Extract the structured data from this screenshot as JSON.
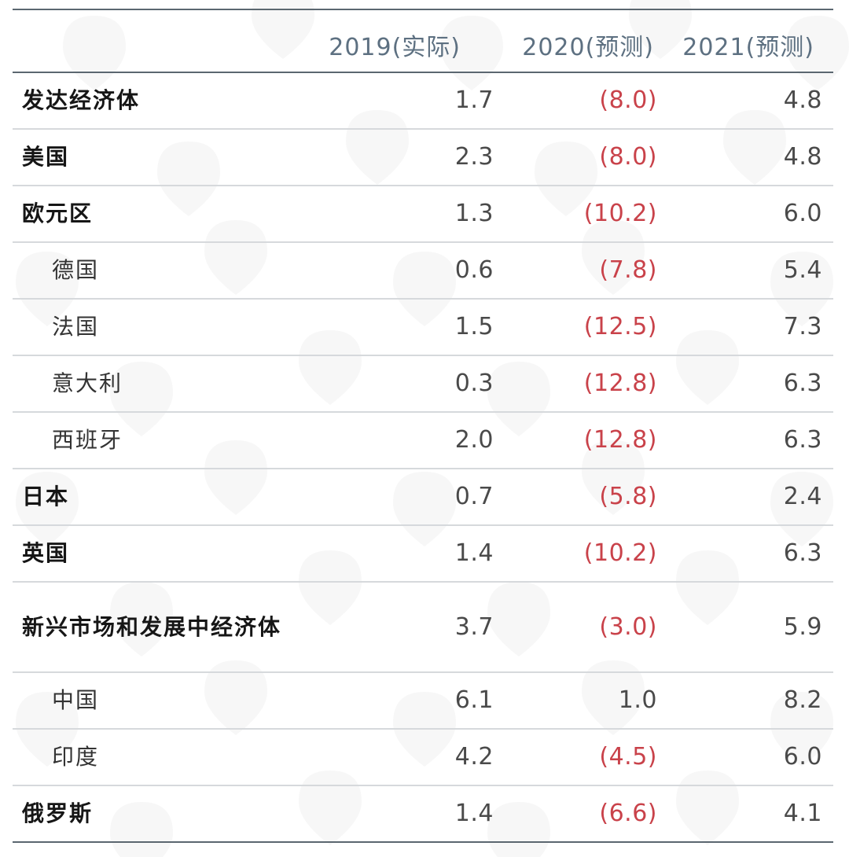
{
  "table": {
    "headers": [
      "",
      "2019(实际)",
      "2020(预测)",
      "2021(预测)"
    ],
    "rows": [
      {
        "label": "发达经济体",
        "v2019": "1.7",
        "v2020": "(8.0)",
        "v2021": "4.8",
        "level": "main",
        "neg2020": true
      },
      {
        "label": "美国",
        "v2019": "2.3",
        "v2020": "(8.0)",
        "v2021": "4.8",
        "level": "main",
        "neg2020": true
      },
      {
        "label": "欧元区",
        "v2019": "1.3",
        "v2020": "(10.2)",
        "v2021": "6.0",
        "level": "main",
        "neg2020": true
      },
      {
        "label": "德国",
        "v2019": "0.6",
        "v2020": "(7.8)",
        "v2021": "5.4",
        "level": "sub",
        "neg2020": true
      },
      {
        "label": "法国",
        "v2019": "1.5",
        "v2020": "(12.5)",
        "v2021": "7.3",
        "level": "sub",
        "neg2020": true
      },
      {
        "label": "意大利",
        "v2019": "0.3",
        "v2020": "(12.8)",
        "v2021": "6.3",
        "level": "sub",
        "neg2020": true
      },
      {
        "label": "西班牙",
        "v2019": "2.0",
        "v2020": "(12.8)",
        "v2021": "6.3",
        "level": "sub",
        "neg2020": true
      },
      {
        "label": "日本",
        "v2019": "0.7",
        "v2020": "(5.8)",
        "v2021": "2.4",
        "level": "main",
        "neg2020": true
      },
      {
        "label": "英国",
        "v2019": "1.4",
        "v2020": "(10.2)",
        "v2021": "6.3",
        "level": "main",
        "neg2020": true
      },
      {
        "label": "新兴市场和发展中经济体",
        "v2019": "3.7",
        "v2020": "(3.0)",
        "v2021": "5.9",
        "level": "main",
        "neg2020": true
      },
      {
        "label": "中国",
        "v2019": "6.1",
        "v2020": "1.0",
        "v2021": "8.2",
        "level": "sub",
        "neg2020": false
      },
      {
        "label": "印度",
        "v2019": "4.2",
        "v2020": "(4.5)",
        "v2021": "6.0",
        "level": "sub",
        "neg2020": true
      },
      {
        "label": "俄罗斯",
        "v2019": "1.4",
        "v2020": "(6.6)",
        "v2021": "4.1",
        "level": "main",
        "neg2020": true
      }
    ]
  },
  "colors": {
    "header_text": "#5d7081",
    "negative_text": "#c9424a",
    "value_text": "#4a4a4a",
    "rule": "#5b6770",
    "row_divider": "#d6d9dc",
    "watermark": "#f2f2f2"
  }
}
